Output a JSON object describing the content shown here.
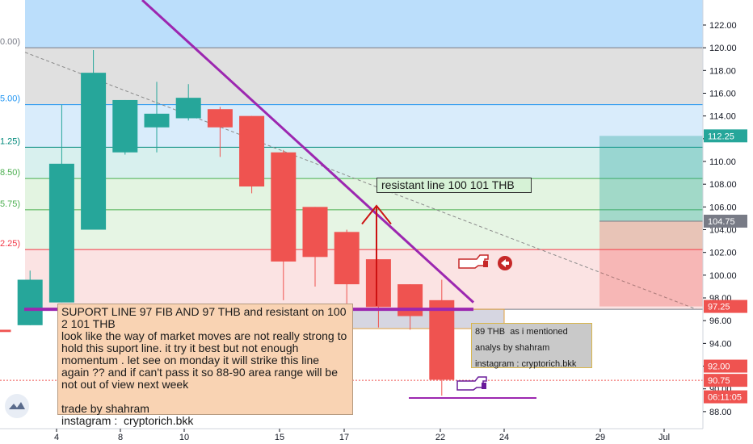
{
  "chart_data": {
    "type": "candlestick",
    "x_ticks": [
      "4",
      "8",
      "10",
      "15",
      "17",
      "22",
      "24",
      "29",
      "Jul"
    ],
    "y_ticks": [
      "88.00",
      "90.00",
      "92.00",
      "94.00",
      "96.00",
      "98.00",
      "100.00",
      "102.00",
      "104.00",
      "106.00",
      "108.00",
      "110.00",
      "112.00",
      "114.00",
      "116.00",
      "118.00",
      "120.00",
      "122.00"
    ],
    "ylim": [
      86.5,
      124.2
    ],
    "candles": [
      {
        "o": 95.2,
        "h": 96.6,
        "l": 93.8,
        "c": 95.0
      },
      {
        "o": 95.6,
        "h": 100.4,
        "l": 95.6,
        "c": 99.6
      },
      {
        "o": 97.6,
        "h": 115.0,
        "l": 97.6,
        "c": 109.8
      },
      {
        "o": 104.0,
        "h": 119.8,
        "l": 104.0,
        "c": 117.8
      },
      {
        "o": 110.8,
        "h": 115.4,
        "l": 110.6,
        "c": 115.4
      },
      {
        "o": 113.0,
        "h": 117.0,
        "l": 110.8,
        "c": 114.2
      },
      {
        "o": 113.8,
        "h": 116.8,
        "l": 113.6,
        "c": 115.6
      },
      {
        "o": 114.6,
        "h": 114.8,
        "l": 110.4,
        "c": 113.0
      },
      {
        "o": 114.0,
        "h": 114.0,
        "l": 107.2,
        "c": 107.8
      },
      {
        "o": 110.8,
        "h": 111.0,
        "l": 97.8,
        "c": 101.2
      },
      {
        "o": 106.0,
        "h": 106.0,
        "l": 99.0,
        "c": 101.6
      },
      {
        "o": 103.8,
        "h": 104.0,
        "l": 97.0,
        "c": 99.2
      },
      {
        "o": 101.4,
        "h": 101.4,
        "l": 95.4,
        "c": 97.2
      },
      {
        "o": 99.2,
        "h": 99.2,
        "l": 95.2,
        "c": 96.4
      },
      {
        "o": 97.8,
        "h": 99.6,
        "l": 89.4,
        "c": 90.8
      }
    ],
    "fib_levels": [
      {
        "label": "0.00)",
        "value": 120.0,
        "color": "#787b86"
      },
      {
        "label": "5.00)",
        "value": 115.0,
        "color": "#2196f3"
      },
      {
        "label": "1.25)",
        "value": 111.25,
        "color": "#00897b"
      },
      {
        "label": "8.50)",
        "value": 108.5,
        "color": "#4caf50"
      },
      {
        "label": "5.75)",
        "value": 105.75,
        "color": "#4caf50"
      },
      {
        "label": "2.25)",
        "value": 102.25,
        "color": "#f23645"
      },
      {
        "label": "",
        "value": 97.0,
        "color": "#787b86"
      }
    ],
    "price_tags": [
      {
        "label": "112.25",
        "value": 112.25,
        "color": "#26a69a"
      },
      {
        "label": "104.75",
        "value": 104.75,
        "color": "#787b86"
      },
      {
        "label": "97.25",
        "value": 97.25,
        "color": "#ef5350"
      },
      {
        "label": "92.00",
        "value": 92.0,
        "color": "#ef5350"
      },
      {
        "label": "90.75",
        "value": 90.75,
        "color": "#ef5350"
      },
      {
        "label": "06:11:05",
        "value": 89.3,
        "color": "#ef5350"
      }
    ],
    "annotations": {
      "resistant": "resistant line 100 101 THB",
      "support_note": "SUPORT LINE 97 FIB AND 97 THB and resistant on 100 2 101 THB\nlook like the way of market moves are not really strong to hold this suport line. it try it best but not enough momentum . let see on monday it will strike this line again ?? and if can't pass it so 88-90 area range will be not out of view next week\n\ntrade by shahram\ninstagram :  cryptorich.bkk",
      "target_note": "89 THB  as i mentioned\nanalys by shahram\ninstagram : cryptorich.bkk"
    },
    "colors": {
      "up": "#26a69a",
      "down": "#ef5350",
      "trendline": "#9c27b0",
      "text": "#131722"
    }
  }
}
